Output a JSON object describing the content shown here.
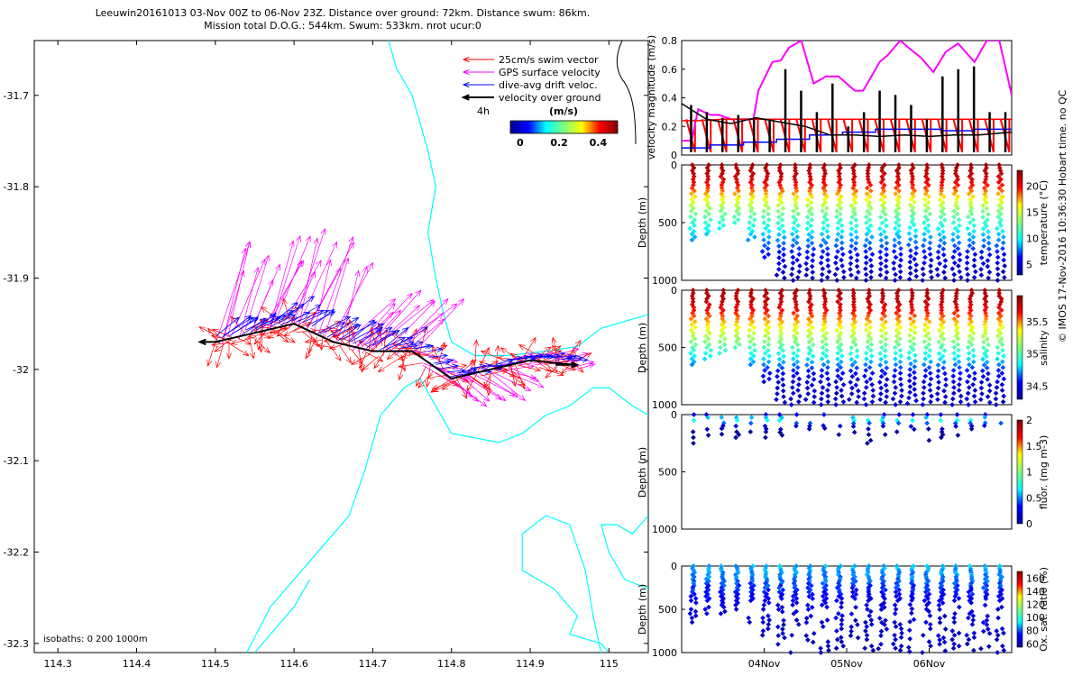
{
  "title": {
    "line1": "Leeuwin20161013 03-Nov 00Z to 06-Nov 23Z. Distance over ground: 72km. Distance swum: 86km.",
    "line2": "Mission total D.O.G.: 544km. Swum: 533km. nrot ucur:0"
  },
  "watermark": "© IMOS 17-Nov-2016 10:36:30 Hobart time. no QC",
  "colors": {
    "swim": "#ff0000",
    "gps": "#ff00ff",
    "drift": "#0000ff",
    "ground": "#000000",
    "isobath": "#00ffff",
    "speed_colormap": [
      "#00008f",
      "#0000ff",
      "#00ffff",
      "#7fff7f",
      "#ffff00",
      "#ff0000",
      "#7f0000"
    ]
  },
  "chart_data": [
    {
      "type": "scatter",
      "panel": "map",
      "xlim": [
        114.27,
        115.05
      ],
      "ylim": [
        -32.31,
        -31.64
      ],
      "x_ticks": [
        114.3,
        114.4,
        114.5,
        114.6,
        114.7,
        114.8,
        114.9,
        115
      ],
      "x_tick_labels": [
        "114.3",
        "114.4",
        "114.5",
        "114.6",
        "114.7",
        "114.8",
        "114.9",
        "115"
      ],
      "y_ticks": [
        -31.7,
        -31.8,
        -31.9,
        -32.0,
        -32.1,
        -32.2,
        -32.3
      ],
      "y_tick_labels": [
        "-31.7",
        "-31.8",
        "-31.9",
        "-32",
        "-32.1",
        "-32.2",
        "-32.3"
      ],
      "legend": {
        "placement": "top-right",
        "entries": [
          "25cm/s swim vector",
          "GPS surface velocity",
          "dive-avg drift veloc.",
          "velocity over ground"
        ],
        "scale_label": "4h"
      },
      "colorbar": {
        "title": "(m/s)",
        "ticks": [
          0,
          0.2,
          0.4
        ],
        "tick_labels": [
          "0",
          "0.2",
          "0.4"
        ],
        "range": [
          -0.05,
          0.5
        ]
      },
      "isobath_note": "isobaths: 0   200  1000m",
      "track": [
        [
          114.5,
          -31.97
        ],
        [
          114.55,
          -31.96
        ],
        [
          114.6,
          -31.95
        ],
        [
          114.65,
          -31.97
        ],
        [
          114.7,
          -31.98
        ],
        [
          114.75,
          -31.98
        ],
        [
          114.8,
          -32.01
        ],
        [
          114.85,
          -32.0
        ],
        [
          114.9,
          -31.99
        ],
        [
          114.955,
          -31.995
        ]
      ],
      "isobath_lines": [
        [
          [
            114.72,
            -31.64
          ],
          [
            114.73,
            -31.67
          ],
          [
            114.75,
            -31.7
          ],
          [
            114.77,
            -31.76
          ],
          [
            114.78,
            -31.8
          ],
          [
            114.77,
            -31.85
          ],
          [
            114.78,
            -31.9
          ],
          [
            114.79,
            -31.94
          ],
          [
            114.8,
            -31.97
          ],
          [
            114.83,
            -31.985
          ],
          [
            114.87,
            -31.985
          ],
          [
            114.92,
            -31.98
          ],
          [
            114.96,
            -31.975
          ],
          [
            114.99,
            -31.955
          ],
          [
            115.03,
            -31.945
          ],
          [
            115.05,
            -31.94
          ]
        ],
        [
          [
            114.54,
            -32.31
          ],
          [
            114.57,
            -32.26
          ],
          [
            114.61,
            -32.22
          ],
          [
            114.65,
            -32.18
          ],
          [
            114.67,
            -32.16
          ],
          [
            114.69,
            -32.11
          ],
          [
            114.71,
            -32.05
          ],
          [
            114.74,
            -32.02
          ],
          [
            114.76,
            -32.01
          ],
          [
            114.8,
            -32.07
          ],
          [
            114.86,
            -32.08
          ],
          [
            114.89,
            -32.07
          ],
          [
            114.92,
            -32.05
          ],
          [
            114.95,
            -32.04
          ],
          [
            114.98,
            -32.02
          ],
          [
            115.0,
            -32.02
          ],
          [
            115.03,
            -32.04
          ],
          [
            115.05,
            -32.05
          ]
        ],
        [
          [
            114.99,
            -32.31
          ],
          [
            114.98,
            -32.27
          ],
          [
            114.97,
            -32.22
          ],
          [
            114.95,
            -32.17
          ],
          [
            114.92,
            -32.16
          ],
          [
            114.89,
            -32.18
          ],
          [
            114.89,
            -32.22
          ],
          [
            114.93,
            -32.24
          ],
          [
            114.96,
            -32.27
          ],
          [
            114.95,
            -32.29
          ],
          [
            114.99,
            -32.3
          ],
          [
            115.0,
            -32.31
          ]
        ],
        [
          [
            115.05,
            -32.16
          ],
          [
            115.03,
            -32.18
          ],
          [
            115.01,
            -32.17
          ],
          [
            114.99,
            -32.17
          ],
          [
            115.0,
            -32.2
          ],
          [
            115.02,
            -32.23
          ],
          [
            115.05,
            -32.24
          ]
        ],
        [
          [
            114.55,
            -32.31
          ],
          [
            114.6,
            -32.26
          ],
          [
            114.62,
            -32.23
          ]
        ]
      ]
    },
    {
      "type": "line",
      "panel": "velocity",
      "ylabel": "velocity magnitude (m/s)",
      "xlim": [
        3.0,
        7.0
      ],
      "ylim": [
        0,
        0.8
      ],
      "y_ticks": [
        0,
        0.2,
        0.4,
        0.6,
        0.8
      ],
      "y_tick_labels": [
        "0",
        "0.2",
        "0.4",
        "0.6",
        "0.8"
      ],
      "series": [
        {
          "key": "gps",
          "x": [
            3.0,
            3.12,
            3.2,
            3.35,
            3.45,
            3.6,
            3.75,
            3.87,
            3.93,
            4.1,
            4.2,
            4.3,
            4.45,
            4.6,
            4.75,
            4.9,
            5.1,
            5.17,
            5.2,
            5.4,
            5.5,
            5.65,
            5.75,
            5.9,
            6.05,
            6.2,
            6.35,
            6.55,
            6.7,
            6.85,
            7.0
          ],
          "values": [
            0.1,
            0.1,
            0.32,
            0.28,
            0.28,
            0.25,
            0.25,
            0.25,
            0.45,
            0.65,
            0.66,
            0.75,
            0.8,
            0.5,
            0.55,
            0.55,
            0.45,
            0.45,
            0.45,
            0.65,
            0.7,
            0.8,
            0.75,
            0.68,
            0.58,
            0.72,
            0.78,
            0.65,
            0.8,
            0.8,
            0.42
          ]
        },
        {
          "key": "swim",
          "x": [
            3.0,
            3.2,
            3.5,
            4.0,
            4.5,
            5.0,
            5.5,
            6.0,
            6.5,
            7.0
          ],
          "values": [
            0.24,
            0.24,
            0.25,
            0.25,
            0.25,
            0.25,
            0.25,
            0.25,
            0.25,
            0.25
          ]
        },
        {
          "key": "drift",
          "x": [
            3.0,
            3.35,
            3.35,
            3.75,
            3.75,
            4.15,
            4.15,
            4.55,
            4.55,
            4.95,
            4.95,
            5.35,
            5.35,
            5.75,
            5.75,
            6.15,
            6.15,
            6.55,
            6.55,
            7.0
          ],
          "values": [
            0.05,
            0.05,
            0.07,
            0.07,
            0.09,
            0.09,
            0.11,
            0.11,
            0.14,
            0.14,
            0.16,
            0.16,
            0.18,
            0.18,
            0.18,
            0.18,
            0.17,
            0.17,
            0.18,
            0.18
          ]
        },
        {
          "key": "ground",
          "x": [
            3.0,
            3.3,
            3.6,
            3.9,
            4.2,
            4.5,
            4.8,
            5.1,
            5.4,
            5.7,
            6.0,
            6.3,
            6.6,
            7.0
          ],
          "values": [
            0.36,
            0.25,
            0.22,
            0.26,
            0.23,
            0.2,
            0.14,
            0.14,
            0.13,
            0.14,
            0.13,
            0.14,
            0.14,
            0.16
          ]
        }
      ],
      "ground_spikes": [
        0.35,
        0.3,
        0.26,
        0.28,
        0.25,
        0.25,
        0.6,
        0.45,
        0.3,
        0.5,
        0.2,
        0.3,
        0.45,
        0.42,
        0.35,
        0.25,
        0.55,
        0.6,
        0.62,
        0.3,
        0.3
      ]
    },
    {
      "type": "scatter",
      "panel": "temperature",
      "ylabel": "Depth (m)",
      "ylim": [
        1000,
        0
      ],
      "y_ticks": [
        0,
        500,
        1000
      ],
      "y_tick_labels": [
        "0",
        "500",
        "1000"
      ],
      "colorbar": {
        "label": "temperature (°C)",
        "ticks": [
          5,
          10,
          15,
          20
        ],
        "tick_labels": [
          "5",
          "10",
          "15",
          "20"
        ],
        "range": [
          3,
          23
        ]
      },
      "profile": {
        "depths": [
          0,
          100,
          200,
          300,
          400,
          500,
          600,
          700,
          800,
          900,
          1000
        ],
        "values": [
          22,
          21,
          19,
          16,
          13,
          11,
          9,
          7.5,
          6,
          5,
          4
        ]
      },
      "dive_max_depths": [
        650,
        600,
        550,
        500,
        650,
        800,
        980,
        1000,
        980,
        1000,
        1000,
        980,
        1000,
        980,
        1000,
        990,
        1000,
        980,
        1000,
        1000,
        980,
        1000
      ]
    },
    {
      "type": "scatter",
      "panel": "salinity",
      "ylabel": "Depth (m)",
      "ylim": [
        1000,
        0
      ],
      "y_ticks": [
        0,
        500,
        1000
      ],
      "y_tick_labels": [
        "0",
        "500",
        "1000"
      ],
      "colorbar": {
        "label": "salinity",
        "ticks": [
          34.5,
          35,
          35.5
        ],
        "tick_labels": [
          "34.5",
          "35",
          "35.5"
        ],
        "range": [
          34.3,
          35.9
        ]
      },
      "profile": {
        "depths": [
          0,
          100,
          200,
          300,
          400,
          500,
          600,
          700,
          800,
          900,
          1000
        ],
        "values": [
          35.8,
          35.75,
          35.6,
          35.4,
          35.2,
          35.0,
          34.8,
          34.6,
          34.5,
          34.45,
          34.45
        ]
      },
      "dive_max_depths": [
        650,
        600,
        550,
        500,
        650,
        800,
        980,
        1000,
        980,
        1000,
        1000,
        980,
        1000,
        980,
        1000,
        990,
        1000,
        980,
        1000,
        1000,
        980,
        1000
      ]
    },
    {
      "type": "scatter",
      "panel": "fluorescence",
      "ylabel": "Depth (m)",
      "ylim": [
        1000,
        0
      ],
      "y_ticks": [
        0,
        500,
        1000
      ],
      "y_tick_labels": [
        "0",
        "500",
        "1000"
      ],
      "colorbar": {
        "label": "fluor. (mg m-3)",
        "ticks": [
          0,
          0.5,
          1,
          1.5,
          2
        ],
        "tick_labels": [
          "0",
          "0.5",
          "1",
          "1.5",
          "2"
        ],
        "range": [
          0,
          2
        ]
      },
      "profile": {
        "depths": [
          0,
          20,
          40,
          60,
          100,
          150,
          250
        ],
        "values": [
          0.25,
          0.5,
          0.8,
          0.6,
          0.2,
          0.05,
          0.02
        ]
      },
      "dive_max_depths": [
        250,
        180,
        220,
        200,
        150,
        200,
        180,
        150,
        150,
        120,
        200,
        180,
        250,
        200,
        150,
        180,
        250,
        200,
        180,
        150,
        120,
        150
      ]
    },
    {
      "type": "scatter",
      "panel": "oxygen",
      "ylabel": "Depth (m)",
      "ylim": [
        1000,
        0
      ],
      "y_ticks": [
        0,
        500,
        1000
      ],
      "y_tick_labels": [
        "0",
        "500",
        "1000"
      ],
      "colorbar": {
        "label": "Ox. sat. ratio (%)",
        "ticks": [
          60,
          80,
          100,
          120,
          140,
          160
        ],
        "tick_labels": [
          "60",
          "80",
          "100",
          "120",
          "140",
          "160"
        ],
        "range": [
          55,
          170
        ]
      },
      "profile": {
        "depths": [
          0,
          100,
          200,
          300,
          400,
          500,
          700,
          1000
        ],
        "values": [
          88,
          85,
          80,
          75,
          70,
          68,
          65,
          62
        ]
      },
      "dive_max_depths": [
        650,
        600,
        550,
        500,
        650,
        800,
        980,
        1000,
        980,
        1000,
        1000,
        980,
        1000,
        980,
        1000,
        990,
        1000,
        980,
        1000,
        1000,
        980,
        1000
      ],
      "xlim": [
        3.0,
        7.0
      ],
      "x_ticks": [
        4.0,
        5.0,
        6.0
      ],
      "x_tick_labels": [
        "04Nov",
        "05Nov",
        "06Nov"
      ]
    }
  ]
}
